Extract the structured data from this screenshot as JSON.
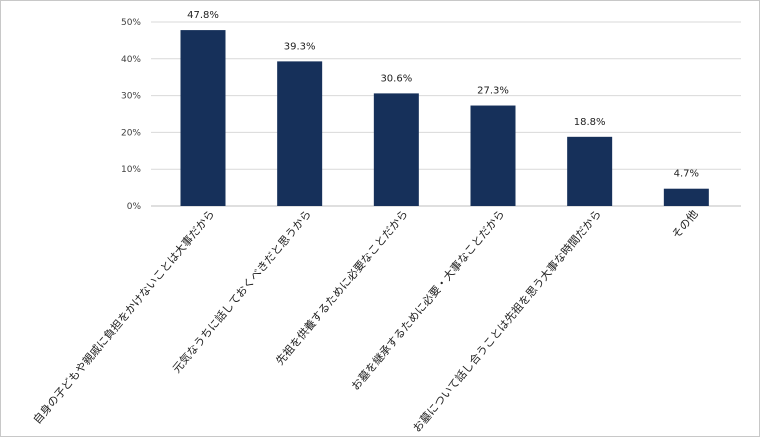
{
  "chart_data": {
    "type": "bar",
    "title": "",
    "xlabel": "",
    "ylabel": "",
    "categories": [
      "自身の子どもや親戚に負担をかけないことは大事だから",
      "元気なうちに話しておくべきだと思うから",
      "先祖を供養するために必要なことだから",
      "お墓を継承するために必要・大事なことだから",
      "お墓について話し合うことは先祖を思う大事な時間だから",
      "その他"
    ],
    "values": [
      47.8,
      39.3,
      30.6,
      27.3,
      18.8,
      4.7
    ],
    "value_labels": [
      "47.8%",
      "39.3%",
      "30.6%",
      "27.3%",
      "18.8%",
      "4.7%"
    ],
    "ylim": [
      0,
      50
    ],
    "yticks": [
      0,
      10,
      20,
      30,
      40,
      50
    ],
    "ytick_labels": [
      "0%",
      "10%",
      "20%",
      "30%",
      "40%",
      "50%"
    ],
    "grid": true,
    "legend": "none",
    "bar_color": "#16305a",
    "grid_color": "#d9d9d9"
  }
}
